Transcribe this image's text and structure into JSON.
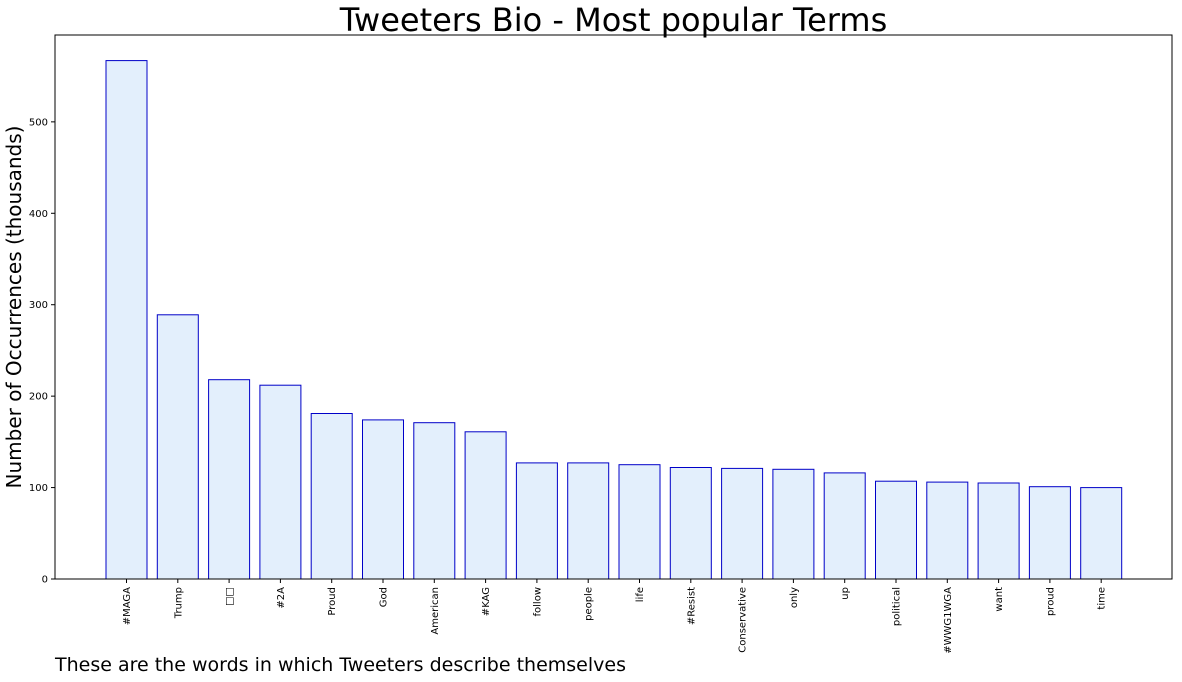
{
  "chart_data": {
    "type": "bar",
    "title": "Tweeters Bio - Most popular Terms",
    "xlabel": "",
    "ylabel": "Number of Occurrences (thousands)",
    "ylim": [
      0,
      595
    ],
    "yticks": [
      0,
      100,
      200,
      300,
      400,
      500
    ],
    "grid": false,
    "categories": [
      "#MAGA",
      "Trump",
      "□□",
      "#2A",
      "Proud",
      "God",
      "American",
      "#KAG",
      "follow",
      "people",
      "life",
      "#Resist",
      "Conservative",
      "only",
      "up",
      "political",
      "#WWG1WGA",
      "want",
      "proud",
      "time"
    ],
    "values": [
      567,
      289,
      218,
      212,
      181,
      174,
      171,
      161,
      127,
      127,
      125,
      122,
      121,
      120,
      116,
      107,
      106,
      105,
      101,
      100
    ],
    "bar_fill": "#e3effc",
    "bar_edge": "#0000c8"
  },
  "caption": "These are the words in which Tweeters describe themselves"
}
